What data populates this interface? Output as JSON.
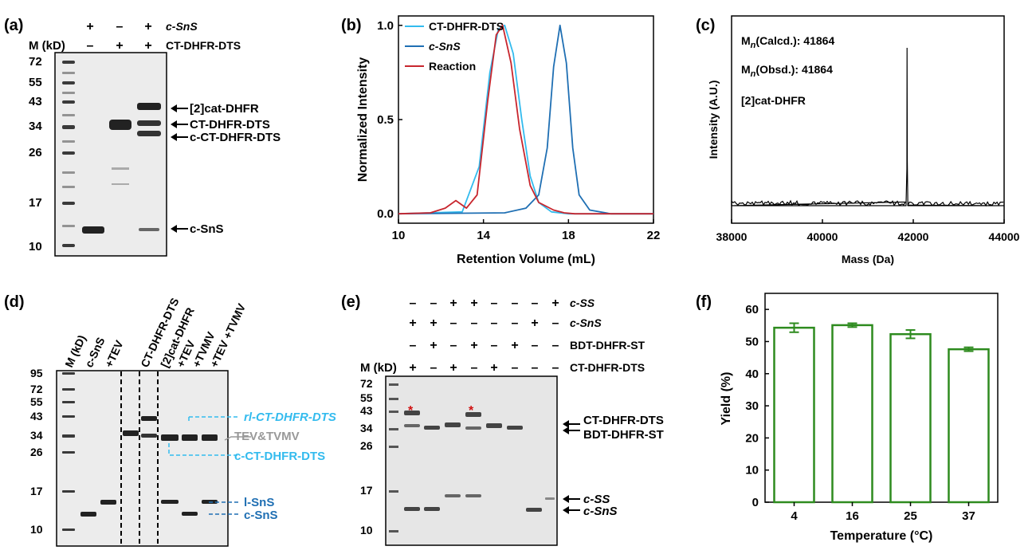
{
  "panels": {
    "a": {
      "label": "(a)",
      "marker_header": "M (kD)",
      "row1_label": "c-SnS",
      "row1_signs": [
        "+",
        "–",
        "+"
      ],
      "row2_label": "CT-DHFR-DTS",
      "row2_signs": [
        "–",
        "+",
        "+"
      ],
      "mw_ticks": [
        "72",
        "55",
        "43",
        "34",
        "26",
        "17",
        "10"
      ],
      "annotations": [
        "[2]cat-DHFR",
        "CT-DHFR-DTS",
        "c-CT-DHFR-DTS",
        "c-SnS"
      ]
    },
    "b": {
      "label": "(b)",
      "legend": [
        "CT-DHFR-DTS",
        "c-SnS",
        "Reaction"
      ],
      "legend_colors": [
        "#33bbee",
        "#1f6fb3",
        "#c8262e"
      ]
    },
    "c": {
      "label": "(c)",
      "mn_calcd": "41864",
      "mn_obsd": "41864",
      "species": "[2]cat-DHFR"
    },
    "d": {
      "label": "(d)",
      "lane_labels": [
        "M (kD)",
        "c-SnS",
        "+TEV",
        "CT-DHFR-DTS",
        "[2]cat-DHFR",
        "+TEV",
        "+TVMV",
        "+TEV +TVMV"
      ],
      "mw_ticks": [
        "95",
        "72",
        "55",
        "43",
        "34",
        "26",
        "17",
        "10"
      ],
      "annotations": [
        "rl-CT-DHFR-DTS",
        "TEV&TVMV",
        "c-CT-DHFR-DTS",
        "l-SnS",
        "c-SnS"
      ]
    },
    "e": {
      "label": "(e)",
      "marker_header": "M (kD)",
      "rows": [
        {
          "label": "c-SS",
          "signs": [
            "–",
            "–",
            "+",
            "+",
            "–",
            "–",
            "–",
            "+"
          ]
        },
        {
          "label": "c-SnS",
          "signs": [
            "+",
            "+",
            "–",
            "–",
            "–",
            "–",
            "+",
            "–"
          ]
        },
        {
          "label": "BDT-DHFR-ST",
          "signs": [
            "–",
            "+",
            "–",
            "+",
            "–",
            "+",
            "–",
            "–"
          ]
        },
        {
          "label": "CT-DHFR-DTS",
          "signs": [
            "+",
            "–",
            "+",
            "–",
            "+",
            "–",
            "–",
            "–"
          ]
        }
      ],
      "mw_ticks": [
        "72",
        "55",
        "43",
        "34",
        "26",
        "17",
        "10"
      ],
      "annotations": [
        "CT-DHFR-DTS",
        "BDT-DHFR-ST",
        "c-SS",
        "c-SnS"
      ],
      "star": "*"
    },
    "f": {
      "label": "(f)",
      "bar_color": "#2e8b1f"
    }
  },
  "chart_data": [
    {
      "panel": "b",
      "type": "line",
      "xlabel": "Retention Volume (mL)",
      "ylabel": "Normalized Intensity",
      "xlim": [
        10,
        22
      ],
      "ylim": [
        -0.05,
        1.05
      ],
      "xticks": [
        10,
        14,
        18,
        22
      ],
      "yticks": [
        0.0,
        0.5,
        1.0
      ],
      "series": [
        {
          "name": "CT-DHFR-DTS",
          "x": [
            10,
            13,
            13.8,
            14.3,
            14.7,
            15.0,
            15.4,
            15.8,
            16.2,
            16.6,
            17.2,
            18,
            22
          ],
          "y": [
            0,
            0.01,
            0.25,
            0.75,
            0.98,
            1.0,
            0.85,
            0.5,
            0.2,
            0.06,
            0.01,
            0,
            0
          ]
        },
        {
          "name": "c-SnS",
          "x": [
            10,
            15,
            16,
            16.6,
            17.0,
            17.3,
            17.6,
            17.9,
            18.2,
            18.5,
            19,
            20,
            22
          ],
          "y": [
            0,
            0.005,
            0.03,
            0.1,
            0.35,
            0.78,
            1.0,
            0.8,
            0.35,
            0.1,
            0.02,
            0,
            0
          ]
        },
        {
          "name": "Reaction",
          "x": [
            10,
            11.5,
            12.2,
            12.7,
            13.2,
            13.7,
            14.2,
            14.6,
            14.9,
            15.3,
            15.7,
            16.2,
            16.6,
            17.3,
            17.8,
            18.3,
            22
          ],
          "y": [
            0,
            0.005,
            0.03,
            0.07,
            0.03,
            0.1,
            0.6,
            0.95,
            1.0,
            0.8,
            0.45,
            0.15,
            0.06,
            0.02,
            0.005,
            0,
            0
          ]
        }
      ]
    },
    {
      "panel": "c",
      "type": "line",
      "xlabel": "Mass (Da)",
      "ylabel": "Intensity (A.U.)",
      "xlim": [
        38000,
        44000
      ],
      "xticks": [
        38000,
        40000,
        42000,
        44000
      ],
      "series": [
        {
          "name": "",
          "x": [
            38000,
            41840,
            41860,
            41864,
            41868,
            41880,
            44000
          ],
          "y": [
            0.02,
            0.02,
            0.25,
            1.0,
            0.3,
            0.02,
            0.02
          ]
        }
      ]
    },
    {
      "panel": "f",
      "type": "bar",
      "xlabel": "Temperature (°C)",
      "ylabel": "Yield (%)",
      "ylim": [
        0,
        65
      ],
      "yticks": [
        0,
        10,
        20,
        30,
        40,
        50,
        60
      ],
      "categories": [
        "4",
        "16",
        "25",
        "37"
      ],
      "values": [
        54.3,
        55.1,
        52.3,
        47.6
      ],
      "errors": [
        1.4,
        0.6,
        1.3,
        0.6
      ]
    }
  ]
}
